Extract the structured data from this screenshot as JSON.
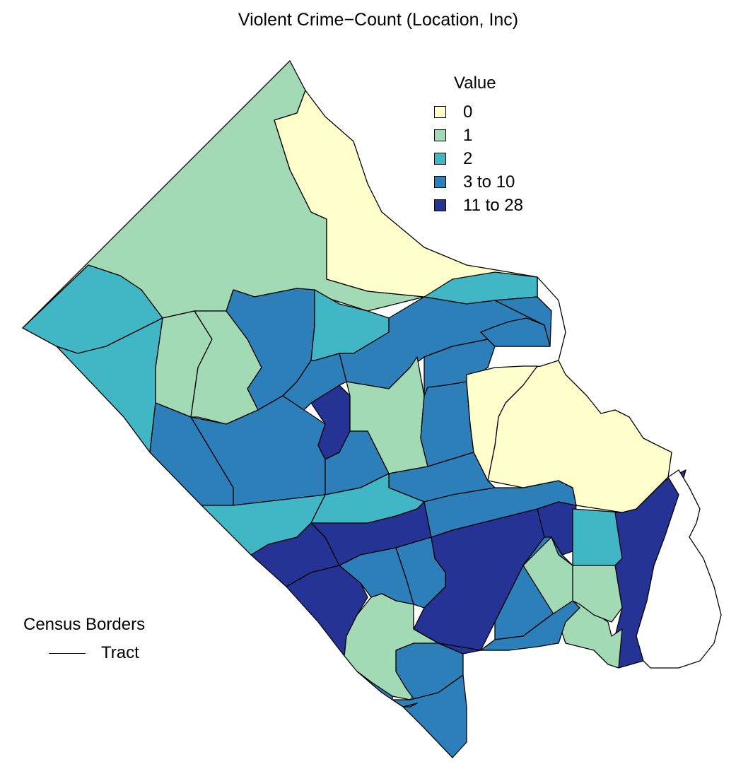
{
  "title": "Violent Crime−Count (Location, Inc)",
  "legend": {
    "title": "Value",
    "items": [
      {
        "label": "0",
        "color": "#ffffcc"
      },
      {
        "label": "1",
        "color": "#a1dab4"
      },
      {
        "label": "2",
        "color": "#41b6c4"
      },
      {
        "label": "3 to 10",
        "color": "#2c7fb8"
      },
      {
        "label": "11 to 28",
        "color": "#253494"
      }
    ]
  },
  "borders_legend": {
    "title": "Census Borders",
    "items": [
      {
        "label": "Tract"
      }
    ]
  },
  "tract_classes": [
    "1",
    "0",
    "2",
    "2",
    "1",
    "1",
    "3 to 10",
    "2",
    "3 to 10",
    "3 to 10",
    "2",
    "3 to 10",
    "3 to 10",
    "11 to 28",
    "3 to 10",
    "1",
    "3 to 10",
    "3 to 10",
    "3 to 10",
    "3 to 10",
    "2",
    "2",
    "11 to 28",
    "11 to 28",
    "11 to 28",
    "11 to 28",
    "11 to 28",
    "3 to 10",
    "3 to 10",
    "2",
    "3 to 10",
    "3 to 10",
    "1",
    "3 to 10",
    "11 to 28",
    "11 to 28",
    "1",
    "1",
    "3 to 10",
    "3 to 10",
    "3 to 10",
    "3 to 10",
    "0",
    "0"
  ]
}
